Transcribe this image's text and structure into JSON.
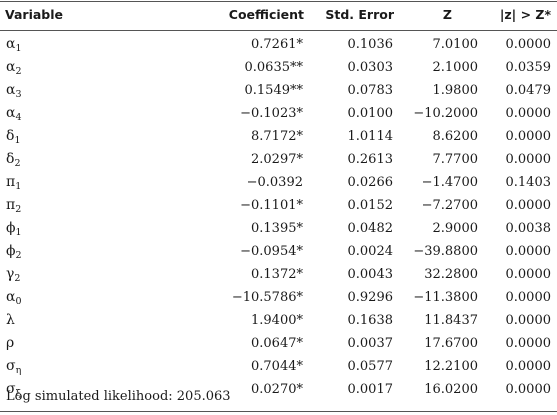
{
  "table": {
    "headers": {
      "variable": "Variable",
      "coefficient": "Coefficient",
      "std_error": "Std. Error",
      "z": "Z",
      "p": "|z| > Z*"
    },
    "rows": [
      {
        "sym": "α",
        "sub": "1",
        "coef": "0.7261*",
        "se": "0.1036",
        "z": "7.0100",
        "p": "0.0000"
      },
      {
        "sym": "α",
        "sub": "2",
        "coef": "0.0635**",
        "se": "0.0303",
        "z": "2.1000",
        "p": "0.0359"
      },
      {
        "sym": "α",
        "sub": "3",
        "coef": "0.1549**",
        "se": "0.0783",
        "z": "1.9800",
        "p": "0.0479"
      },
      {
        "sym": "α",
        "sub": "4",
        "coef": "−0.1023*",
        "se": "0.0100",
        "z": "−10.2000",
        "p": "0.0000"
      },
      {
        "sym": "δ",
        "sub": "1",
        "coef": "8.7172*",
        "se": "1.0114",
        "z": "8.6200",
        "p": "0.0000"
      },
      {
        "sym": "δ",
        "sub": "2",
        "coef": "2.0297*",
        "se": "0.2613",
        "z": "7.7700",
        "p": "0.0000"
      },
      {
        "sym": "π",
        "sub": "1",
        "coef": "−0.0392",
        "se": "0.0266",
        "z": "−1.4700",
        "p": "0.1403"
      },
      {
        "sym": "π",
        "sub": "2",
        "coef": "−0.1101*",
        "se": "0.0152",
        "z": "−7.2700",
        "p": "0.0000"
      },
      {
        "sym": "ϕ",
        "sub": "1",
        "coef": "0.1395*",
        "se": "0.0482",
        "z": "2.9000",
        "p": "0.0038"
      },
      {
        "sym": "ϕ",
        "sub": "2",
        "coef": "−0.0954*",
        "se": "0.0024",
        "z": "−39.8800",
        "p": "0.0000"
      },
      {
        "sym": "γ",
        "sub": "2",
        "coef": "0.1372*",
        "se": "0.0043",
        "z": "32.2800",
        "p": "0.0000"
      },
      {
        "sym": "α",
        "sub": "0",
        "coef": "−10.5786*",
        "se": "0.9296",
        "z": "−11.3800",
        "p": "0.0000"
      },
      {
        "sym": "λ",
        "sub": "",
        "coef": "1.9400*",
        "se": "0.1638",
        "z": "11.8437",
        "p": "0.0000"
      },
      {
        "sym": "ρ",
        "sub": "",
        "coef": "0.0647*",
        "se": "0.0037",
        "z": "17.6700",
        "p": "0.0000"
      },
      {
        "sym": "σ",
        "sub": "η",
        "coef": "0.7044*",
        "se": "0.0577",
        "z": "12.2100",
        "p": "0.0000"
      },
      {
        "sym": "σ",
        "sub": "ξ",
        "coef": "0.0270*",
        "se": "0.0017",
        "z": "16.0200",
        "p": "0.0000"
      }
    ],
    "footer": "Log simulated likelihood: 205.063"
  }
}
